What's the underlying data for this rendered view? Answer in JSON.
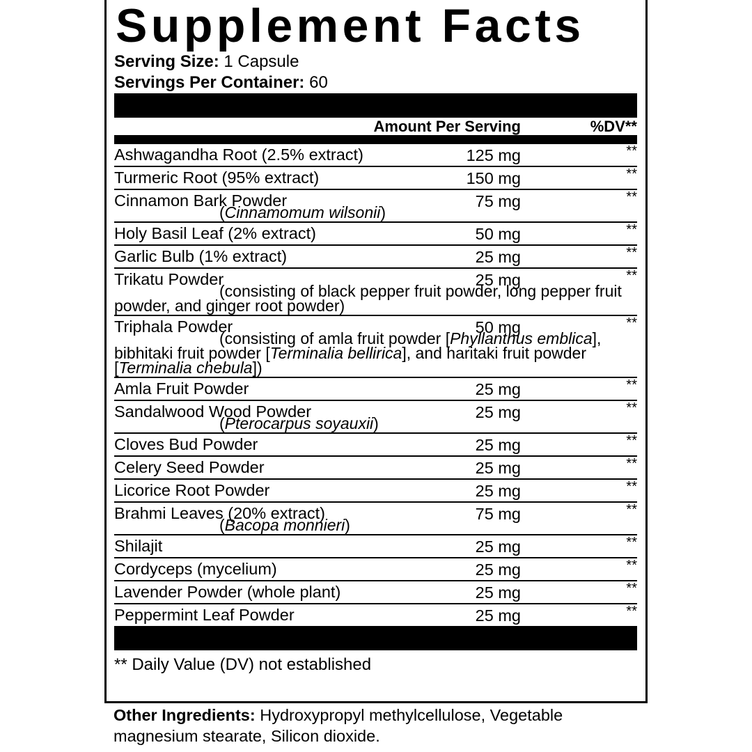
{
  "title": "Supplement Facts",
  "serving_size": {
    "label": "Serving Size:",
    "value": "1 Capsule"
  },
  "servings_per_container": {
    "label": "Servings Per Container:",
    "value": "60"
  },
  "table_header": {
    "amount": "Amount Per Serving",
    "dv": "%DV**"
  },
  "rows": [
    {
      "name": "Ashwagandha Root (2.5% extract)",
      "amount": "125 mg",
      "dv": "**"
    },
    {
      "name": "Turmeric Root (95% extract)",
      "amount": "150 mg",
      "dv": "**"
    },
    {
      "name": "Cinnamon Bark Powder",
      "amount": "75 mg",
      "dv": "**",
      "note": [
        "(",
        {
          "em": "Cinnamomum wilsonii"
        },
        ")"
      ]
    },
    {
      "name": "Holy Basil Leaf (2% extract)",
      "amount": "50 mg",
      "dv": "**"
    },
    {
      "name": "Garlic Bulb (1% extract)",
      "amount": "25 mg",
      "dv": "**"
    },
    {
      "name": "Trikatu Powder",
      "amount": "25 mg",
      "dv": "**",
      "note": [
        "(consisting of black pepper fruit powder, long pepper fruit powder, and ginger root powder)"
      ]
    },
    {
      "name": "Triphala Powder",
      "amount": "50 mg",
      "dv": "**",
      "note": [
        "(consisting of amla fruit powder [",
        {
          "em": "Phyllanthus emblica"
        },
        "], bibhitaki fruit powder [",
        {
          "em": "Terminalia bellirica"
        },
        "], and haritaki fruit powder [",
        {
          "em": "Terminalia chebula"
        },
        "])"
      ]
    },
    {
      "name": "Amla Fruit Powder",
      "amount": "25 mg",
      "dv": "**"
    },
    {
      "name": "Sandalwood Wood Powder",
      "amount": "25 mg",
      "dv": "**",
      "note": [
        "(",
        {
          "em": "Pterocarpus soyauxii"
        },
        ")"
      ]
    },
    {
      "name": "Cloves Bud Powder",
      "amount": "25 mg",
      "dv": "**"
    },
    {
      "name": "Celery Seed Powder",
      "amount": "25 mg",
      "dv": "**"
    },
    {
      "name": "Licorice Root Powder",
      "amount": "25 mg",
      "dv": "**"
    },
    {
      "name": "Brahmi Leaves (20% extract)",
      "amount": "75 mg",
      "dv": "**",
      "note": [
        "(",
        {
          "em": "Bacopa monnieri"
        },
        ")"
      ]
    },
    {
      "name": "Shilajit",
      "amount": "25 mg",
      "dv": "**"
    },
    {
      "name": "Cordyceps (mycelium)",
      "amount": "25 mg",
      "dv": "**"
    },
    {
      "name": "Lavender Powder (whole plant)",
      "amount": "25 mg",
      "dv": "**"
    },
    {
      "name": "Peppermint Leaf Powder",
      "amount": "25 mg",
      "dv": "**"
    }
  ],
  "footnote": "** Daily Value (DV) not established",
  "other_ingredients": {
    "label": "Other Ingredients:",
    "text": "Hydroxypropyl methylcellulose, Vegetable magnesium stearate, Silicon dioxide."
  }
}
